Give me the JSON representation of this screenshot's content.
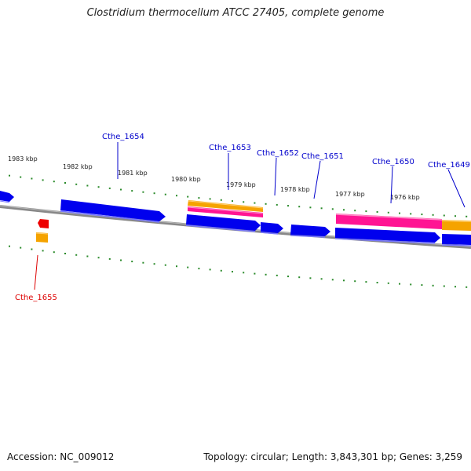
{
  "header": {
    "title": "Clostridium thermocellum ATCC 27405, complete genome"
  },
  "footer": {
    "accession": "Accession: NC_009012",
    "summary": "Topology: circular; Length: 3,843,301 bp; Genes: 3,259"
  },
  "colors": {
    "forward_gene": "#0000ee",
    "reverse_gene": "#ee0000",
    "orange_feature": "#f5a300",
    "pink_feature": "#ff1493",
    "backbone": "#888888",
    "tick": "#2a8a2a",
    "label_forward": "#0000cc",
    "label_reverse": "#dd0000"
  },
  "scale": {
    "unit": "kbp",
    "labels": [
      "1983 kbp",
      "1982 kbp",
      "1981 kbp",
      "1980 kbp",
      "1979 kbp",
      "1978 kbp",
      "1977 kbp",
      "1976 kbp"
    ]
  },
  "genes": {
    "forward": [
      "Cthe_1654",
      "Cthe_1653",
      "Cthe_1652",
      "Cthe_1651",
      "Cthe_1650",
      "Cthe_1649"
    ],
    "reverse": [
      "Cthe_1655"
    ]
  }
}
